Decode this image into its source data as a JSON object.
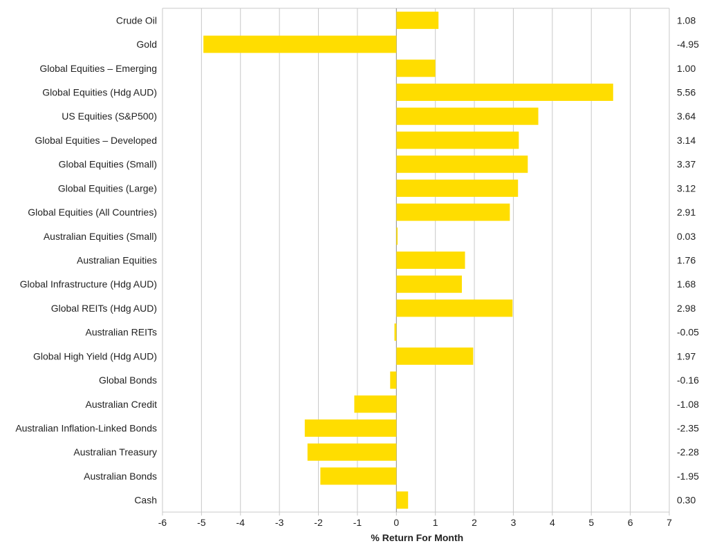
{
  "chart_data": {
    "type": "bar",
    "orientation": "horizontal",
    "title": "",
    "xlabel": "% Return For Month",
    "ylabel": "",
    "xlim": [
      -6,
      7
    ],
    "xticks": [
      -6,
      -5,
      -4,
      -3,
      -2,
      -1,
      0,
      1,
      2,
      3,
      4,
      5,
      6,
      7
    ],
    "grid": true,
    "bar_color": "#FFDD00",
    "categories": [
      "Crude Oil",
      "Gold",
      "Global Equities – Emerging",
      "Global Equities (Hdg AUD)",
      "US Equities (S&P500)",
      "Global Equities – Developed",
      "Global Equities (Small)",
      "Global Equities (Large)",
      "Global Equities (All Countries)",
      "Australian Equities (Small)",
      "Australian Equities",
      "Global Infrastructure (Hdg AUD)",
      "Global REITs (Hdg AUD)",
      "Australian REITs",
      "Global High Yield (Hdg AUD)",
      "Global Bonds",
      "Australian Credit",
      "Australian Inflation-Linked Bonds",
      "Australian Treasury",
      "Australian Bonds",
      "Cash"
    ],
    "values": [
      1.08,
      -4.95,
      1.0,
      5.56,
      3.64,
      3.14,
      3.37,
      3.12,
      2.91,
      0.03,
      1.76,
      1.68,
      2.98,
      -0.05,
      1.97,
      -0.16,
      -1.08,
      -2.35,
      -2.28,
      -1.95,
      0.3
    ],
    "value_labels": [
      "1.08",
      "-4.95",
      "1.00",
      "5.56",
      "3.64",
      "3.14",
      "3.37",
      "3.12",
      "2.91",
      "0.03",
      "1.76",
      "1.68",
      "2.98",
      "-0.05",
      "1.97",
      "-0.16",
      "-1.08",
      "-2.35",
      "-2.28",
      "-1.95",
      "0.30"
    ]
  }
}
